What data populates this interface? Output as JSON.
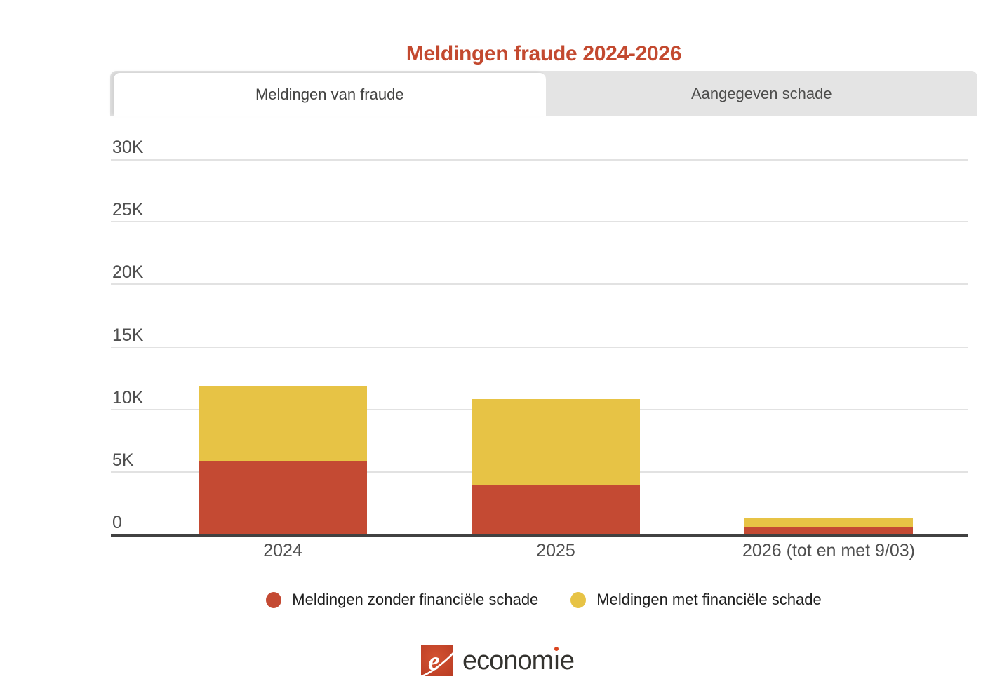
{
  "title": "Meldingen fraude 2024-2026",
  "tabs": [
    {
      "label": "Meldingen van fraude",
      "active": true
    },
    {
      "label": "Aangegeven schade",
      "active": false
    }
  ],
  "chart_data": {
    "type": "bar",
    "stacked": true,
    "title": "Meldingen fraude 2024-2026",
    "categories": [
      "2024",
      "2025",
      "2026 (tot en met 9/03)"
    ],
    "series": [
      {
        "name": "Meldingen zonder financiële schade",
        "color": "#c44a33",
        "values": [
          5900,
          4000,
          600
        ]
      },
      {
        "name": "Meldingen met financiële schade",
        "color": "#e7c345",
        "values": [
          6000,
          6800,
          700
        ]
      }
    ],
    "y_ticks": [
      {
        "label": "30K",
        "value": 30000
      },
      {
        "label": "25K",
        "value": 25000
      },
      {
        "label": "20K",
        "value": 20000
      },
      {
        "label": "15K",
        "value": 15000
      },
      {
        "label": "10K",
        "value": 10000
      },
      {
        "label": "5K",
        "value": 5000
      },
      {
        "label": "0",
        "value": 0
      }
    ],
    "ylim": [
      0,
      30000
    ],
    "xlabel": "",
    "ylabel": "",
    "grid": true,
    "legend_position": "bottom"
  },
  "colors": {
    "title": "#c3492f",
    "bar_red": "#c44a33",
    "bar_yellow": "#e7c345",
    "inactive_tab_bg": "#e4e4e4",
    "axis_line": "#414141",
    "gridline": "#e2e2e2"
  },
  "footer": {
    "logo_text": "economie"
  }
}
